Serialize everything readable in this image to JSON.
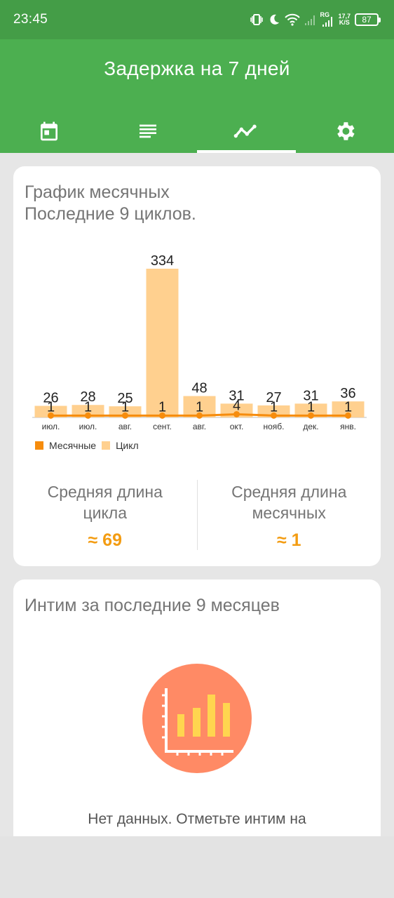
{
  "status": {
    "time": "23:45",
    "net_speed_top": "17,7",
    "net_speed_bottom": "K/S",
    "network_label": "RG",
    "battery": "87"
  },
  "header": {
    "title": "Задержка на 7 дней",
    "tabs": [
      {
        "icon": "calendar-icon",
        "active": false
      },
      {
        "icon": "list-icon",
        "active": false
      },
      {
        "icon": "chart-line-icon",
        "active": true
      },
      {
        "icon": "gear-icon",
        "active": false
      }
    ]
  },
  "chart_card": {
    "title_line1": "График месячных",
    "title_line2": "Последние 9 циклов.",
    "legend": [
      {
        "label": "Месячные",
        "color": "#f68c0d"
      },
      {
        "label": "Цикл",
        "color": "#ffd08f"
      }
    ],
    "stats": {
      "cycle_label": "Средняя длина цикла",
      "cycle_value": "≈ 69",
      "period_label": "Средняя длина месячных",
      "period_value": "≈ 1"
    }
  },
  "chart_data": {
    "type": "bar",
    "categories": [
      "июл.",
      "июл.",
      "авг.",
      "сент.",
      "авг.",
      "окт.",
      "нояб.",
      "дек.",
      "янв."
    ],
    "series": [
      {
        "name": "Цикл",
        "type": "bar",
        "values": [
          26,
          28,
          25,
          334,
          48,
          31,
          27,
          31,
          36
        ],
        "color": "#ffd08f"
      },
      {
        "name": "Месячные",
        "type": "line",
        "values": [
          1,
          1,
          1,
          1,
          1,
          4,
          1,
          1,
          1
        ],
        "color": "#f68c0d"
      }
    ],
    "ylim": [
      0,
      334
    ],
    "legend_position": "bottom-left",
    "grid": false
  },
  "intimacy_card": {
    "title": "Интим за последние 9 месяцев",
    "empty_text": "Нет данных. Отметьте интим на"
  }
}
